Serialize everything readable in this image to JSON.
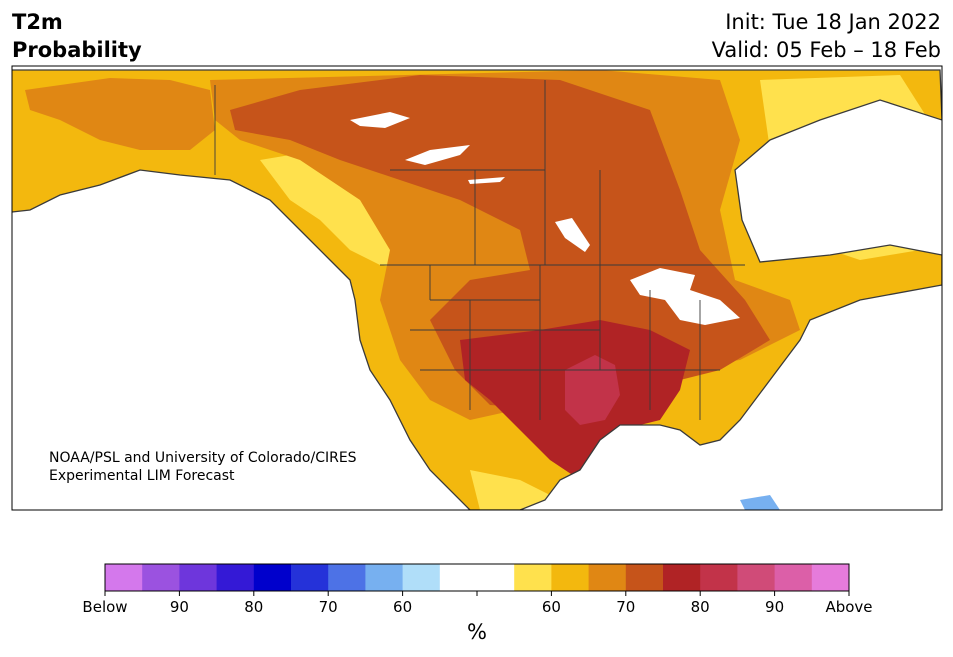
{
  "header": {
    "title_line1": "T2m",
    "title_line2": "Probability",
    "init_text": "Init: Tue 18 Jan 2022",
    "valid_text": "Valid: 05 Feb – 18 Feb"
  },
  "credit": {
    "line1": "NOAA/PSL and University of Colorado/CIRES",
    "line2": "Experimental LIM Forecast"
  },
  "colorbar": {
    "units": "%",
    "colors": [
      "#d478ec",
      "#9b52e0",
      "#6e36dc",
      "#3419d6",
      "#0000cc",
      "#2532d9",
      "#4d72e6",
      "#77b0f0",
      "#b0def9",
      "#ffffff",
      "#ffffff",
      "#ffe14d",
      "#f3b80e",
      "#e08714",
      "#c6541a",
      "#b02325",
      "#c23349",
      "#d04b78",
      "#dc5fa8",
      "#e67bdb"
    ],
    "tick_labels": [
      {
        "slot": 0,
        "text": "Below"
      },
      {
        "slot": 2,
        "text": "90"
      },
      {
        "slot": 4,
        "text": "80"
      },
      {
        "slot": 6,
        "text": "70"
      },
      {
        "slot": 8,
        "text": "60"
      },
      {
        "slot": 10,
        "text": ""
      },
      {
        "slot": 12,
        "text": "60"
      },
      {
        "slot": 14,
        "text": "70"
      },
      {
        "slot": 16,
        "text": "80"
      },
      {
        "slot": 18,
        "text": "90"
      },
      {
        "slot": 20,
        "text": "Above"
      }
    ]
  },
  "map": {
    "colors": {
      "ocean": "#ffffff",
      "p60": "#ffe14d",
      "p65": "#f3b80e",
      "p70": "#e08714",
      "p75": "#c6541a",
      "p80": "#b02325",
      "p85": "#c23349",
      "below60": "#77b0f0",
      "border": "#3a3a3a"
    }
  }
}
